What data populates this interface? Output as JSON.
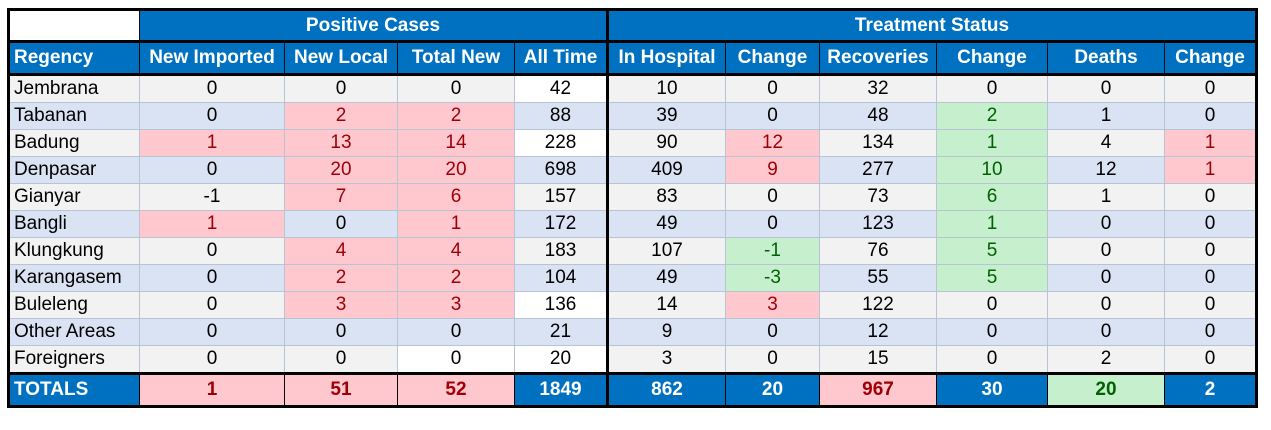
{
  "groups": {
    "positive": "Positive Cases",
    "treatment": "Treatment Status"
  },
  "headers": [
    "Regency",
    "New Imported",
    "New Local",
    "Total New",
    "All Time",
    "In Hospital",
    "Change",
    "Recoveries",
    "Change",
    "Deaths",
    "Change"
  ],
  "rows": [
    [
      "Jembrana",
      "0",
      "0",
      "0",
      "42",
      "10",
      "0",
      "32",
      "0",
      "0",
      "0"
    ],
    [
      "Tabanan",
      "0",
      "2",
      "2",
      "88",
      "39",
      "0",
      "48",
      "2",
      "1",
      "0"
    ],
    [
      "Badung",
      "1",
      "13",
      "14",
      "228",
      "90",
      "12",
      "134",
      "1",
      "4",
      "1"
    ],
    [
      "Denpasar",
      "0",
      "20",
      "20",
      "698",
      "409",
      "9",
      "277",
      "10",
      "12",
      "1"
    ],
    [
      "Gianyar",
      "-1",
      "7",
      "6",
      "157",
      "83",
      "0",
      "73",
      "6",
      "1",
      "0"
    ],
    [
      "Bangli",
      "1",
      "0",
      "1",
      "172",
      "49",
      "0",
      "123",
      "1",
      "0",
      "0"
    ],
    [
      "Klungkung",
      "0",
      "4",
      "4",
      "183",
      "107",
      "-1",
      "76",
      "5",
      "0",
      "0"
    ],
    [
      "Karangasem",
      "0",
      "2",
      "2",
      "104",
      "49",
      "-3",
      "55",
      "5",
      "0",
      "0"
    ],
    [
      "Buleleng",
      "0",
      "3",
      "3",
      "136",
      "14",
      "3",
      "122",
      "0",
      "0",
      "0"
    ],
    [
      "Other Areas",
      "0",
      "0",
      "0",
      "21",
      "9",
      "0",
      "12",
      "0",
      "0",
      "0"
    ],
    [
      "Foreigners",
      "0",
      "0",
      "0",
      "20",
      "3",
      "0",
      "15",
      "0",
      "2",
      "0"
    ]
  ],
  "totals": [
    "TOTALS",
    "1",
    "51",
    "52",
    "1849",
    "862",
    "20",
    "967",
    "30",
    "20",
    "2"
  ],
  "colors": {
    "header_blue": "#0070c0",
    "positive_pink": "#ffc7ce",
    "positive_text": "#9c0006",
    "negative_green": "#c6efce",
    "negative_text": "#006100",
    "row_gray": "#f2f2f2",
    "row_blue": "#dae3f3"
  }
}
